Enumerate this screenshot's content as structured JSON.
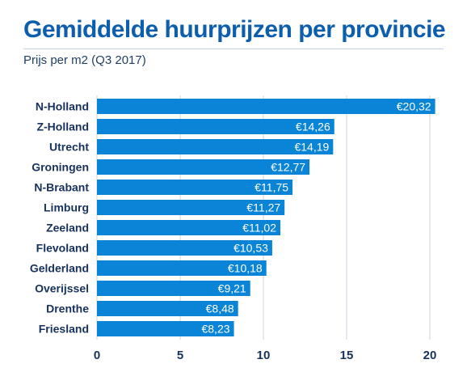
{
  "chart_data": {
    "type": "bar",
    "orientation": "horizontal",
    "title": "Gemiddelde huurprijzen per provincie",
    "subtitle": "Prijs per m2 (Q3 2017)",
    "categories": [
      "N-Holland",
      "Z-Holland",
      "Utrecht",
      "Groningen",
      "N-Brabant",
      "Limburg",
      "Zeeland",
      "Flevoland",
      "Gelderland",
      "Overijssel",
      "Drenthe",
      "Friesland"
    ],
    "values": [
      20.32,
      14.26,
      14.19,
      12.77,
      11.75,
      11.27,
      11.02,
      10.53,
      10.18,
      9.21,
      8.48,
      8.23
    ],
    "value_labels": [
      "€20,32",
      "€14,26",
      "€14,19",
      "€12,77",
      "€11,75",
      "€11,27",
      "€11,02",
      "€10,53",
      "€10,18",
      "€9,21",
      "€8,48",
      "€8,23"
    ],
    "xticks": [
      "0",
      "5",
      "10",
      "15",
      "20"
    ],
    "xlim": [
      0,
      20.5
    ],
    "grid": "vertical",
    "bar_color": "#0a84d6"
  }
}
